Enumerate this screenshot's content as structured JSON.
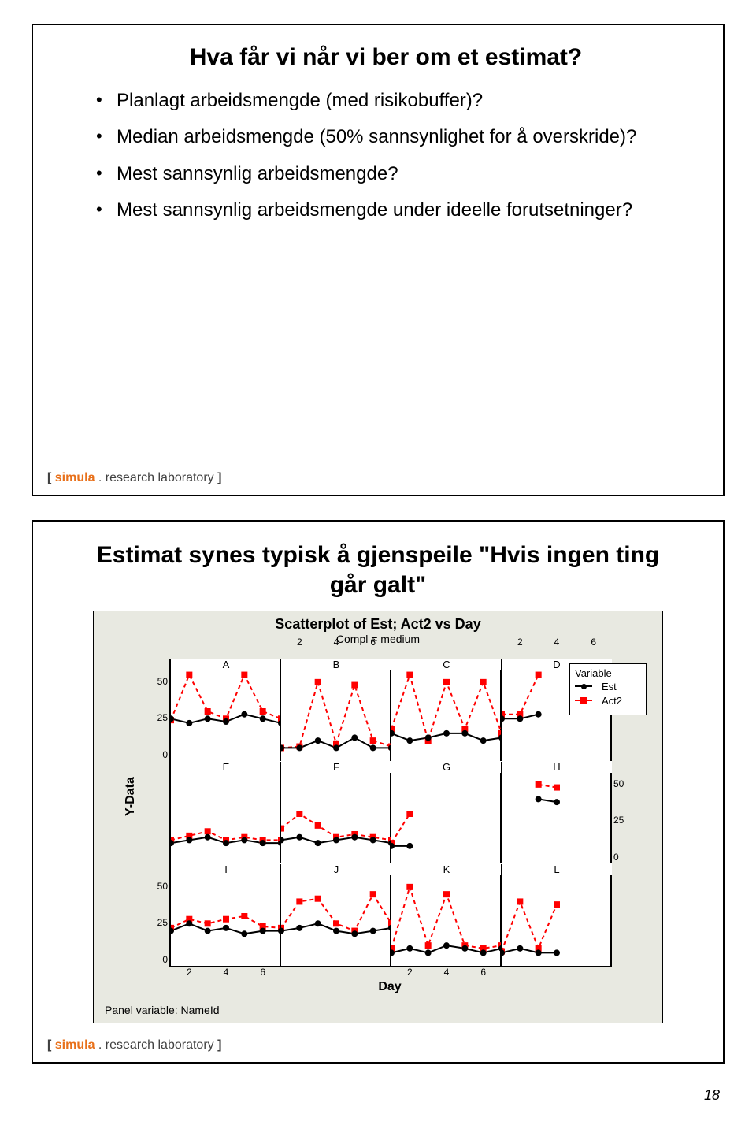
{
  "page_number": "18",
  "footer": {
    "bracket_open": "[",
    "brand": "simula",
    "suffix": " . research laboratory ",
    "bracket_close": "]"
  },
  "slide1": {
    "title": "Hva får vi når vi ber om et estimat?",
    "bullets": [
      "Planlagt arbeidsmengde (med risikobuffer)?",
      "Median arbeidsmengde (50% sannsynlighet for å overskride)?",
      "Mest sannsynlig arbeidsmengde?",
      "Mest sannsynlig arbeidsmengde under ideelle forutsetninger?"
    ]
  },
  "slide2": {
    "title": "Estimat synes typisk å gjenspeile \"Hvis ingen ting går galt\"",
    "chart": {
      "type": "panel-scatter-line",
      "title": "Scatterplot of Est; Act2 vs Day",
      "subtitle": "Compl = medium",
      "ylabel": "Y-Data",
      "xlabel": "Day",
      "panel_var_label": "Panel variable: NameId",
      "legend": {
        "title": "Variable",
        "s1": "Est",
        "s2": "Act2"
      },
      "colors": {
        "est": "#000000",
        "act": "#ff0000",
        "bg": "#e8e9e1",
        "panelbg": "#ffffff"
      },
      "x_ticks": [
        2,
        4,
        6
      ],
      "y_ticks": [
        0,
        25,
        50
      ],
      "xlim": [
        1,
        7
      ],
      "ylim": [
        -5,
        65
      ],
      "panels": [
        {
          "label": "A",
          "est": [
            [
              1,
              25
            ],
            [
              2,
              22
            ],
            [
              3,
              25
            ],
            [
              4,
              23
            ],
            [
              5,
              28
            ],
            [
              6,
              25
            ],
            [
              7,
              22
            ]
          ],
          "act": [
            [
              1,
              24
            ],
            [
              2,
              55
            ],
            [
              3,
              30
            ],
            [
              4,
              25
            ],
            [
              5,
              55
            ],
            [
              6,
              30
            ],
            [
              7,
              25
            ]
          ]
        },
        {
          "label": "B",
          "est": [
            [
              1,
              5
            ],
            [
              2,
              5
            ],
            [
              3,
              10
            ],
            [
              4,
              5
            ],
            [
              5,
              12
            ],
            [
              6,
              5
            ],
            [
              7,
              5
            ]
          ],
          "act": [
            [
              1,
              5
            ],
            [
              2,
              6
            ],
            [
              3,
              50
            ],
            [
              4,
              8
            ],
            [
              5,
              48
            ],
            [
              6,
              10
            ],
            [
              7,
              6
            ]
          ]
        },
        {
          "label": "C",
          "est": [
            [
              1,
              15
            ],
            [
              2,
              10
            ],
            [
              3,
              12
            ],
            [
              4,
              15
            ],
            [
              5,
              15
            ],
            [
              6,
              10
            ],
            [
              7,
              12
            ]
          ],
          "act": [
            [
              1,
              18
            ],
            [
              2,
              55
            ],
            [
              3,
              10
            ],
            [
              4,
              50
            ],
            [
              5,
              18
            ],
            [
              6,
              50
            ],
            [
              7,
              15
            ]
          ]
        },
        {
          "label": "D",
          "est": [
            [
              1,
              25
            ],
            [
              2,
              25
            ],
            [
              3,
              28
            ]
          ],
          "act": [
            [
              1,
              28
            ],
            [
              2,
              28
            ],
            [
              3,
              55
            ]
          ]
        },
        {
          "label": "E",
          "est": [
            [
              1,
              10
            ],
            [
              2,
              12
            ],
            [
              3,
              14
            ],
            [
              4,
              10
            ],
            [
              5,
              12
            ],
            [
              6,
              10
            ],
            [
              7,
              10
            ]
          ],
          "act": [
            [
              1,
              12
            ],
            [
              2,
              15
            ],
            [
              3,
              18
            ],
            [
              4,
              12
            ],
            [
              5,
              14
            ],
            [
              6,
              12
            ],
            [
              7,
              12
            ]
          ]
        },
        {
          "label": "F",
          "est": [
            [
              1,
              12
            ],
            [
              2,
              14
            ],
            [
              3,
              10
            ],
            [
              4,
              12
            ],
            [
              5,
              14
            ],
            [
              6,
              12
            ],
            [
              7,
              10
            ]
          ],
          "act": [
            [
              1,
              20
            ],
            [
              2,
              30
            ],
            [
              3,
              22
            ],
            [
              4,
              14
            ],
            [
              5,
              16
            ],
            [
              6,
              14
            ],
            [
              7,
              12
            ]
          ]
        },
        {
          "label": "G",
          "est": [
            [
              1,
              8
            ],
            [
              2,
              8
            ]
          ],
          "act": [
            [
              1,
              10
            ],
            [
              2,
              30
            ]
          ]
        },
        {
          "label": "H",
          "est": [
            [
              3,
              40
            ],
            [
              4,
              38
            ]
          ],
          "act": [
            [
              3,
              50
            ],
            [
              4,
              48
            ]
          ]
        },
        {
          "label": "I",
          "est": [
            [
              1,
              20
            ],
            [
              2,
              25
            ],
            [
              3,
              20
            ],
            [
              4,
              22
            ],
            [
              5,
              18
            ],
            [
              6,
              20
            ],
            [
              7,
              20
            ]
          ],
          "act": [
            [
              1,
              22
            ],
            [
              2,
              28
            ],
            [
              3,
              25
            ],
            [
              4,
              28
            ],
            [
              5,
              30
            ],
            [
              6,
              23
            ],
            [
              7,
              22
            ]
          ]
        },
        {
          "label": "J",
          "est": [
            [
              1,
              20
            ],
            [
              2,
              22
            ],
            [
              3,
              25
            ],
            [
              4,
              20
            ],
            [
              5,
              18
            ],
            [
              6,
              20
            ],
            [
              7,
              22
            ]
          ],
          "act": [
            [
              1,
              22
            ],
            [
              2,
              40
            ],
            [
              3,
              42
            ],
            [
              4,
              25
            ],
            [
              5,
              20
            ],
            [
              6,
              45
            ],
            [
              7,
              25
            ]
          ]
        },
        {
          "label": "K",
          "est": [
            [
              1,
              5
            ],
            [
              2,
              8
            ],
            [
              3,
              5
            ],
            [
              4,
              10
            ],
            [
              5,
              8
            ],
            [
              6,
              5
            ],
            [
              7,
              8
            ]
          ],
          "act": [
            [
              1,
              8
            ],
            [
              2,
              50
            ],
            [
              3,
              10
            ],
            [
              4,
              45
            ],
            [
              5,
              10
            ],
            [
              6,
              8
            ],
            [
              7,
              10
            ]
          ]
        },
        {
          "label": "L",
          "est": [
            [
              1,
              5
            ],
            [
              2,
              8
            ],
            [
              3,
              5
            ],
            [
              4,
              5
            ]
          ],
          "act": [
            [
              1,
              6
            ],
            [
              2,
              40
            ],
            [
              3,
              8
            ],
            [
              4,
              38
            ]
          ]
        }
      ]
    }
  }
}
